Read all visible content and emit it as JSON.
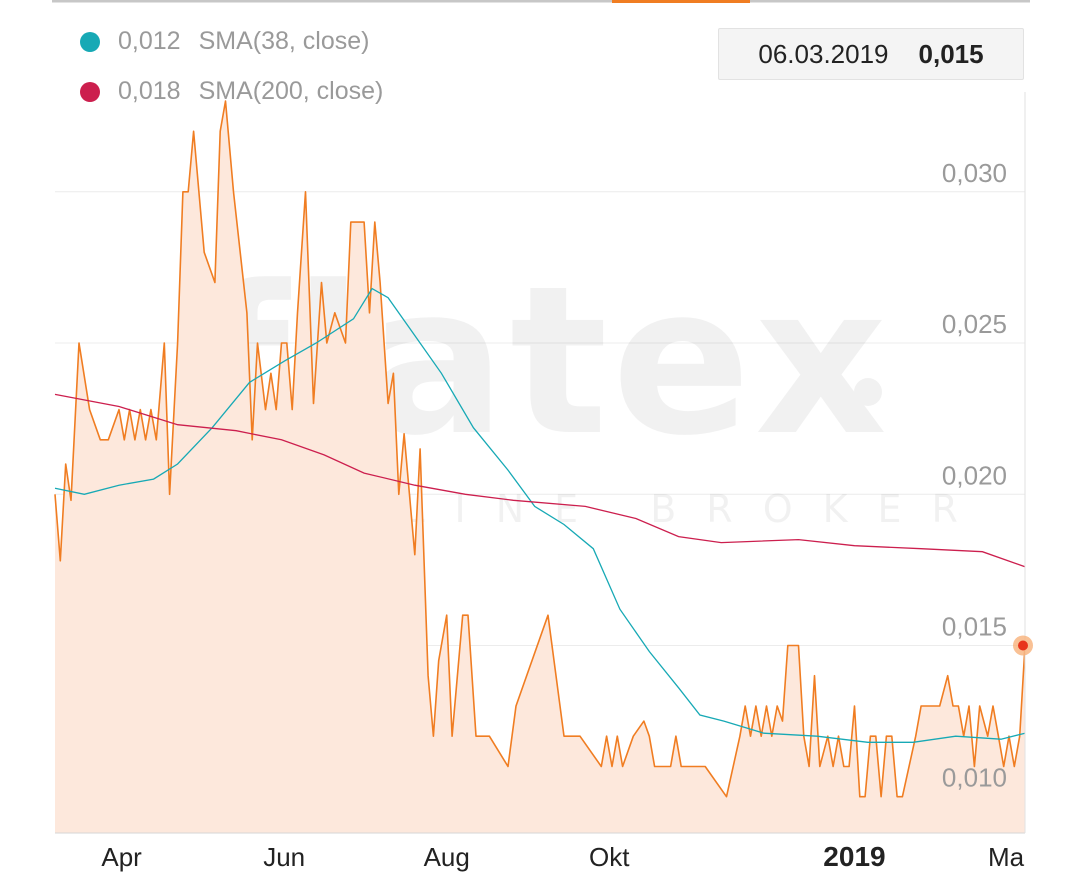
{
  "legend": [
    {
      "value": "0,012",
      "label": "SMA(38, close)",
      "color": "#17a9b5"
    },
    {
      "value": "0,018",
      "label": "SMA(200, close)",
      "color": "#cc1f4e"
    }
  ],
  "tooltip": {
    "date": "06.03.2019",
    "value": "0,015"
  },
  "watermark": {
    "brand": "flatex",
    "tagline": "ONLINE BROKER"
  },
  "colors": {
    "price_line": "#f07d22",
    "price_fill": "#fde8dc",
    "grid": "#ececec",
    "top_accent": "#f07d22"
  },
  "chart_data": {
    "type": "area",
    "x_labels": [
      "Apr",
      "Jun",
      "Aug",
      "Okt",
      "2019",
      "Ma"
    ],
    "y_ticks": [
      "0,010",
      "0,015",
      "0,020",
      "0,025",
      "0,030"
    ],
    "ylim": [
      0.0088,
      0.0333
    ],
    "x_range": [
      "2018-03-07",
      "2019-03-06"
    ],
    "grid": true,
    "series": [
      {
        "role": "price",
        "points": [
          [
            "2018-03-07",
            0.02
          ],
          [
            "2018-03-09",
            0.0178
          ],
          [
            "2018-03-11",
            0.021
          ],
          [
            "2018-03-13",
            0.0198
          ],
          [
            "2018-03-16",
            0.025
          ],
          [
            "2018-03-20",
            0.0228
          ],
          [
            "2018-03-24",
            0.0218
          ],
          [
            "2018-03-27",
            0.0218
          ],
          [
            "2018-03-31",
            0.0228
          ],
          [
            "2018-04-02",
            0.0218
          ],
          [
            "2018-04-04",
            0.0228
          ],
          [
            "2018-04-06",
            0.0218
          ],
          [
            "2018-04-08",
            0.0228
          ],
          [
            "2018-04-10",
            0.0218
          ],
          [
            "2018-04-12",
            0.0228
          ],
          [
            "2018-04-14",
            0.0218
          ],
          [
            "2018-04-17",
            0.025
          ],
          [
            "2018-04-19",
            0.02
          ],
          [
            "2018-04-22",
            0.025
          ],
          [
            "2018-04-24",
            0.03
          ],
          [
            "2018-04-26",
            0.03
          ],
          [
            "2018-04-28",
            0.032
          ],
          [
            "2018-05-02",
            0.028
          ],
          [
            "2018-05-06",
            0.027
          ],
          [
            "2018-05-08",
            0.032
          ],
          [
            "2018-05-10",
            0.033
          ],
          [
            "2018-05-13",
            0.03
          ],
          [
            "2018-05-18",
            0.026
          ],
          [
            "2018-05-20",
            0.0218
          ],
          [
            "2018-05-22",
            0.025
          ],
          [
            "2018-05-25",
            0.0228
          ],
          [
            "2018-05-27",
            0.024
          ],
          [
            "2018-05-29",
            0.0228
          ],
          [
            "2018-05-31",
            0.025
          ],
          [
            "2018-06-02",
            0.025
          ],
          [
            "2018-06-04",
            0.0228
          ],
          [
            "2018-06-06",
            0.026
          ],
          [
            "2018-06-09",
            0.03
          ],
          [
            "2018-06-12",
            0.023
          ],
          [
            "2018-06-15",
            0.027
          ],
          [
            "2018-06-17",
            0.025
          ],
          [
            "2018-06-20",
            0.026
          ],
          [
            "2018-06-24",
            0.025
          ],
          [
            "2018-06-26",
            0.029
          ],
          [
            "2018-07-01",
            0.029
          ],
          [
            "2018-07-03",
            0.026
          ],
          [
            "2018-07-05",
            0.029
          ],
          [
            "2018-07-07",
            0.027
          ],
          [
            "2018-07-10",
            0.023
          ],
          [
            "2018-07-12",
            0.024
          ],
          [
            "2018-07-14",
            0.02
          ],
          [
            "2018-07-16",
            0.022
          ],
          [
            "2018-07-20",
            0.018
          ],
          [
            "2018-07-22",
            0.0215
          ],
          [
            "2018-07-25",
            0.014
          ],
          [
            "2018-07-27",
            0.012
          ],
          [
            "2018-07-29",
            0.0145
          ],
          [
            "2018-08-01",
            0.016
          ],
          [
            "2018-08-03",
            0.012
          ],
          [
            "2018-08-05",
            0.014
          ],
          [
            "2018-08-07",
            0.016
          ],
          [
            "2018-08-09",
            0.016
          ],
          [
            "2018-08-12",
            0.012
          ],
          [
            "2018-08-17",
            0.012
          ],
          [
            "2018-08-24",
            0.011
          ],
          [
            "2018-08-27",
            0.013
          ],
          [
            "2018-09-08",
            0.016
          ],
          [
            "2018-09-14",
            0.012
          ],
          [
            "2018-09-20",
            0.012
          ],
          [
            "2018-09-28",
            0.011
          ],
          [
            "2018-09-30",
            0.012
          ],
          [
            "2018-10-02",
            0.011
          ],
          [
            "2018-10-04",
            0.012
          ],
          [
            "2018-10-06",
            0.011
          ],
          [
            "2018-10-10",
            0.012
          ],
          [
            "2018-10-14",
            0.0125
          ],
          [
            "2018-10-16",
            0.012
          ],
          [
            "2018-10-18",
            0.011
          ],
          [
            "2018-10-24",
            0.011
          ],
          [
            "2018-10-26",
            0.012
          ],
          [
            "2018-10-28",
            0.011
          ],
          [
            "2018-11-01",
            0.011
          ],
          [
            "2018-11-06",
            0.011
          ],
          [
            "2018-11-14",
            0.01
          ],
          [
            "2018-11-19",
            0.012
          ],
          [
            "2018-11-21",
            0.013
          ],
          [
            "2018-11-23",
            0.012
          ],
          [
            "2018-11-25",
            0.013
          ],
          [
            "2018-11-27",
            0.012
          ],
          [
            "2018-11-29",
            0.013
          ],
          [
            "2018-12-01",
            0.012
          ],
          [
            "2018-12-03",
            0.013
          ],
          [
            "2018-12-05",
            0.0125
          ],
          [
            "2018-12-07",
            0.015
          ],
          [
            "2018-12-11",
            0.015
          ],
          [
            "2018-12-13",
            0.012
          ],
          [
            "2018-12-15",
            0.011
          ],
          [
            "2018-12-17",
            0.014
          ],
          [
            "2018-12-19",
            0.011
          ],
          [
            "2018-12-22",
            0.012
          ],
          [
            "2018-12-24",
            0.011
          ],
          [
            "2018-12-26",
            0.012
          ],
          [
            "2018-12-28",
            0.011
          ],
          [
            "2018-12-30",
            0.011
          ],
          [
            "2019-01-01",
            0.013
          ],
          [
            "2019-01-03",
            0.01
          ],
          [
            "2019-01-05",
            0.01
          ],
          [
            "2019-01-07",
            0.012
          ],
          [
            "2019-01-09",
            0.012
          ],
          [
            "2019-01-11",
            0.01
          ],
          [
            "2019-01-13",
            0.012
          ],
          [
            "2019-01-15",
            0.012
          ],
          [
            "2019-01-17",
            0.01
          ],
          [
            "2019-01-19",
            0.01
          ],
          [
            "2019-01-24",
            0.012
          ],
          [
            "2019-01-26",
            0.013
          ],
          [
            "2019-02-02",
            0.013
          ],
          [
            "2019-02-05",
            0.014
          ],
          [
            "2019-02-07",
            0.013
          ],
          [
            "2019-02-09",
            0.013
          ],
          [
            "2019-02-11",
            0.012
          ],
          [
            "2019-02-13",
            0.013
          ],
          [
            "2019-02-15",
            0.011
          ],
          [
            "2019-02-17",
            0.013
          ],
          [
            "2019-02-20",
            0.012
          ],
          [
            "2019-02-22",
            0.013
          ],
          [
            "2019-02-24",
            0.012
          ],
          [
            "2019-02-26",
            0.011
          ],
          [
            "2019-02-28",
            0.012
          ],
          [
            "2019-03-02",
            0.011
          ],
          [
            "2019-03-04",
            0.012
          ],
          [
            "2019-03-06",
            0.015
          ]
        ]
      },
      {
        "name": "SMA(38, close)",
        "points": [
          [
            "2018-03-07",
            0.0202
          ],
          [
            "2018-03-18",
            0.02
          ],
          [
            "2018-03-31",
            0.0203
          ],
          [
            "2018-04-13",
            0.0205
          ],
          [
            "2018-04-22",
            0.021
          ],
          [
            "2018-05-05",
            0.0222
          ],
          [
            "2018-05-19",
            0.0237
          ],
          [
            "2018-06-01",
            0.0244
          ],
          [
            "2018-06-13",
            0.025
          ],
          [
            "2018-06-27",
            0.0258
          ],
          [
            "2018-07-04",
            0.0268
          ],
          [
            "2018-07-10",
            0.0265
          ],
          [
            "2018-07-18",
            0.0255
          ],
          [
            "2018-07-30",
            0.024
          ],
          [
            "2018-08-11",
            0.0222
          ],
          [
            "2018-08-24",
            0.0208
          ],
          [
            "2018-09-03",
            0.0196
          ],
          [
            "2018-09-14",
            0.019
          ],
          [
            "2018-09-25",
            0.0182
          ],
          [
            "2018-10-05",
            0.0162
          ],
          [
            "2018-10-16",
            0.0148
          ],
          [
            "2018-10-27",
            0.0136
          ],
          [
            "2018-11-04",
            0.0127
          ],
          [
            "2018-11-13",
            0.0125
          ],
          [
            "2018-11-28",
            0.0121
          ],
          [
            "2018-12-18",
            0.012
          ],
          [
            "2019-01-06",
            0.0118
          ],
          [
            "2019-01-23",
            0.0118
          ],
          [
            "2019-02-08",
            0.012
          ],
          [
            "2019-02-25",
            0.0119
          ],
          [
            "2019-03-06",
            0.0121
          ]
        ]
      },
      {
        "name": "SMA(200, close)",
        "points": [
          [
            "2018-03-07",
            0.0233
          ],
          [
            "2018-03-31",
            0.0229
          ],
          [
            "2018-04-22",
            0.0223
          ],
          [
            "2018-05-14",
            0.0221
          ],
          [
            "2018-05-31",
            0.0218
          ],
          [
            "2018-06-16",
            0.0213
          ],
          [
            "2018-07-01",
            0.0207
          ],
          [
            "2018-07-20",
            0.0203
          ],
          [
            "2018-08-08",
            0.02
          ],
          [
            "2018-08-26",
            0.0198
          ],
          [
            "2018-09-22",
            0.0196
          ],
          [
            "2018-10-11",
            0.0192
          ],
          [
            "2018-10-27",
            0.0186
          ],
          [
            "2018-11-12",
            0.0184
          ],
          [
            "2018-12-11",
            0.0185
          ],
          [
            "2019-01-01",
            0.0183
          ],
          [
            "2019-01-26",
            0.0182
          ],
          [
            "2019-02-18",
            0.0181
          ],
          [
            "2019-03-06",
            0.0176
          ]
        ]
      }
    ]
  }
}
